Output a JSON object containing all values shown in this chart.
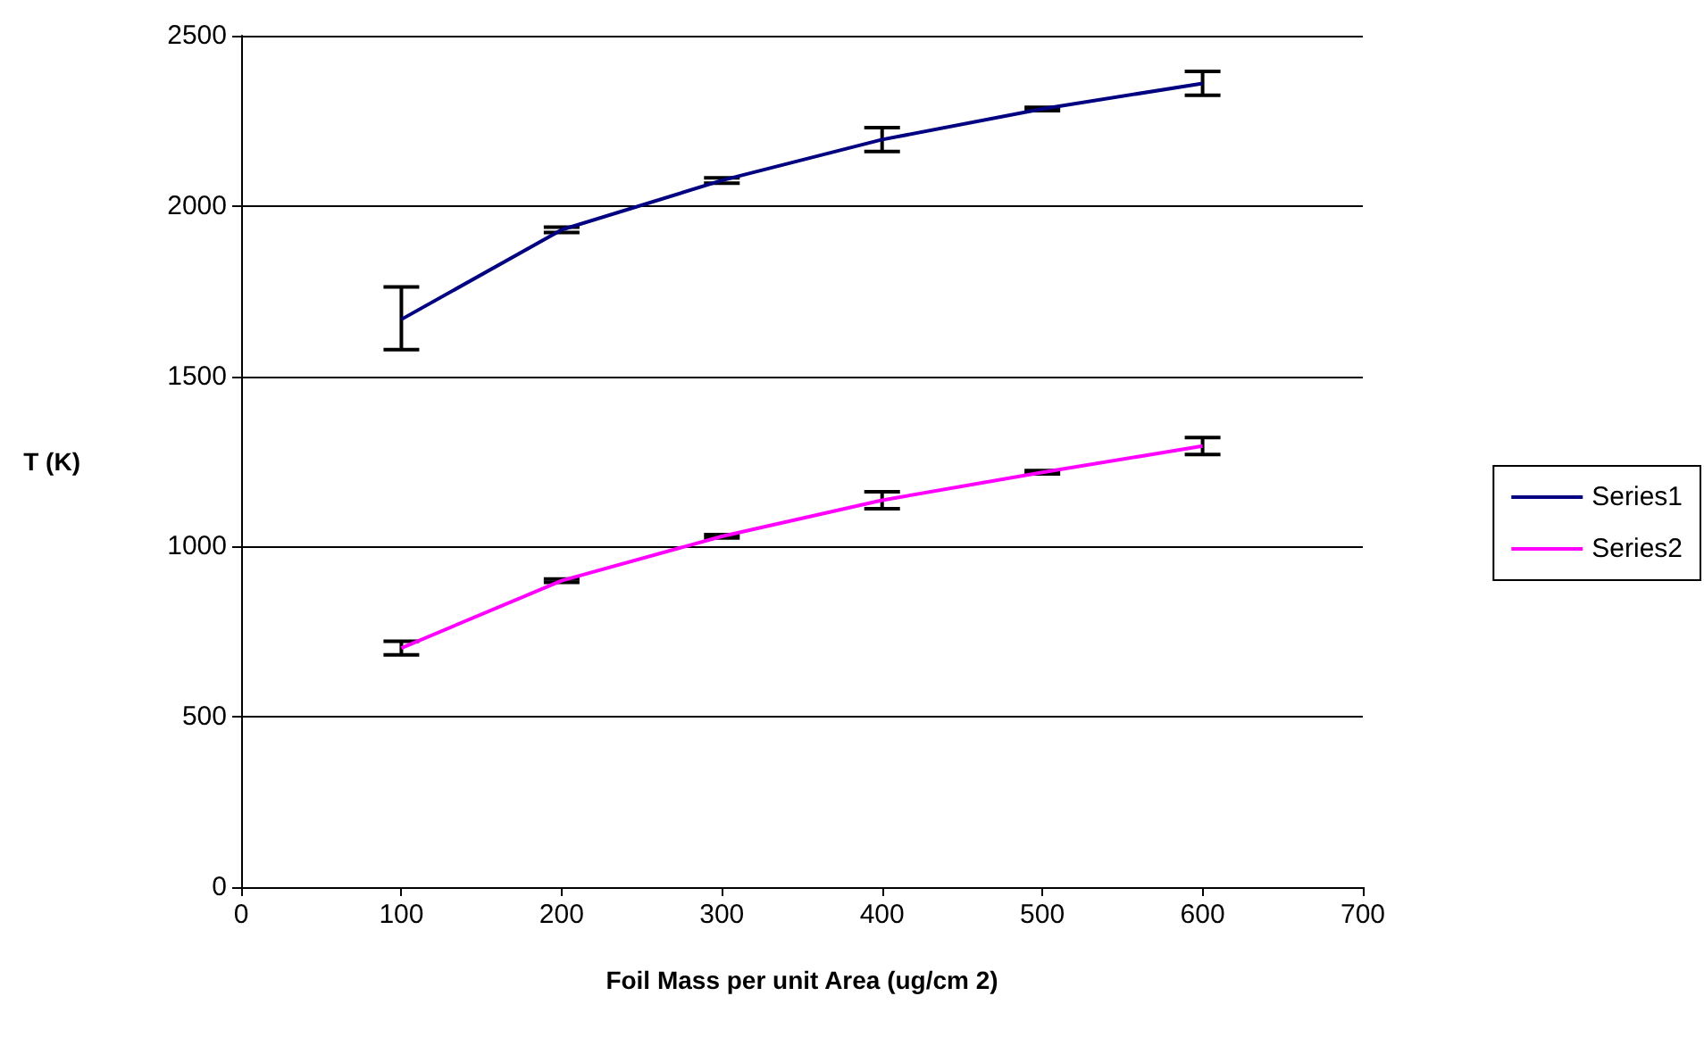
{
  "chart_data": {
    "type": "line",
    "xlabel": "Foil Mass per unit Area (ug/cm 2)",
    "ylabel": "T (K)",
    "x": [
      100,
      200,
      300,
      400,
      500,
      600
    ],
    "series": [
      {
        "name": "Series1",
        "color": "#000080",
        "values": [
          1667,
          1930,
          2075,
          2195,
          2285,
          2360
        ],
        "errors": [
          [
            1578,
            1762
          ],
          8,
          8,
          35,
          5,
          35
        ]
      },
      {
        "name": "Series2",
        "color": "#ff00ff",
        "values": [
          702,
          900,
          1030,
          1136,
          1218,
          1295
        ],
        "errors": [
          20,
          5,
          5,
          25,
          5,
          25
        ]
      }
    ],
    "xlim": [
      0,
      700
    ],
    "xticks": [
      0,
      100,
      200,
      300,
      400,
      500,
      600,
      700
    ],
    "ylim": [
      0,
      2500
    ],
    "yticks": [
      0,
      500,
      1000,
      1500,
      2000,
      2500
    ],
    "grid": "y",
    "legend": "right",
    "marker": "none",
    "line_style": "solid"
  }
}
